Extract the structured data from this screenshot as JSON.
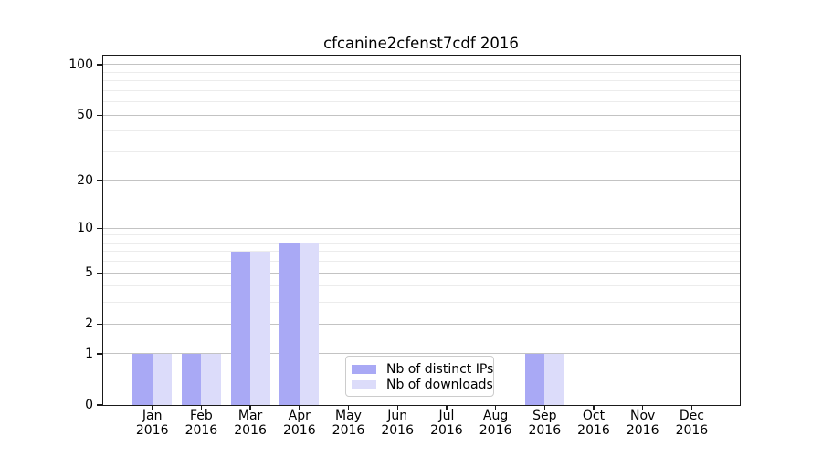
{
  "title": "cfcanine2cfenst7cdf 2016",
  "chart_data": {
    "type": "bar",
    "title": "cfcanine2cfenst7cdf 2016",
    "categories": [
      "Jan",
      "Feb",
      "Mar",
      "Apr",
      "May",
      "Jun",
      "Jul",
      "Aug",
      "Sep",
      "Oct",
      "Nov",
      "Dec"
    ],
    "year_label": "2016",
    "series": [
      {
        "name": "Nb of distinct IPs",
        "color": "#a9a9f5",
        "values": [
          1,
          1,
          7,
          8,
          0,
          0,
          0,
          0,
          1,
          0,
          0,
          0
        ]
      },
      {
        "name": "Nb of downloads",
        "color": "#dcdcfa",
        "values": [
          1,
          1,
          7,
          8,
          0,
          0,
          0,
          0,
          1,
          0,
          0,
          0
        ]
      }
    ],
    "xlabel": "",
    "ylabel": "",
    "y_scale": "log10(1+x)",
    "y_ticks": [
      0,
      1,
      2,
      5,
      10,
      20,
      50,
      100
    ],
    "y_tick_labels": [
      "0",
      "1",
      "2",
      "5",
      "10",
      "20",
      "50",
      "100"
    ],
    "y_minor_gridlines": [
      3,
      4,
      6,
      7,
      8,
      9,
      30,
      40,
      60,
      70,
      80,
      90
    ],
    "ylim": [
      0,
      114.7
    ],
    "grid": true,
    "legend_position": "lower-center"
  },
  "colors": {
    "major_grid": "#c3c3c3",
    "minor_grid": "#ececec",
    "axis": "#1a1a1a",
    "background": "#ffffff",
    "legend_border": "#cccccc"
  }
}
